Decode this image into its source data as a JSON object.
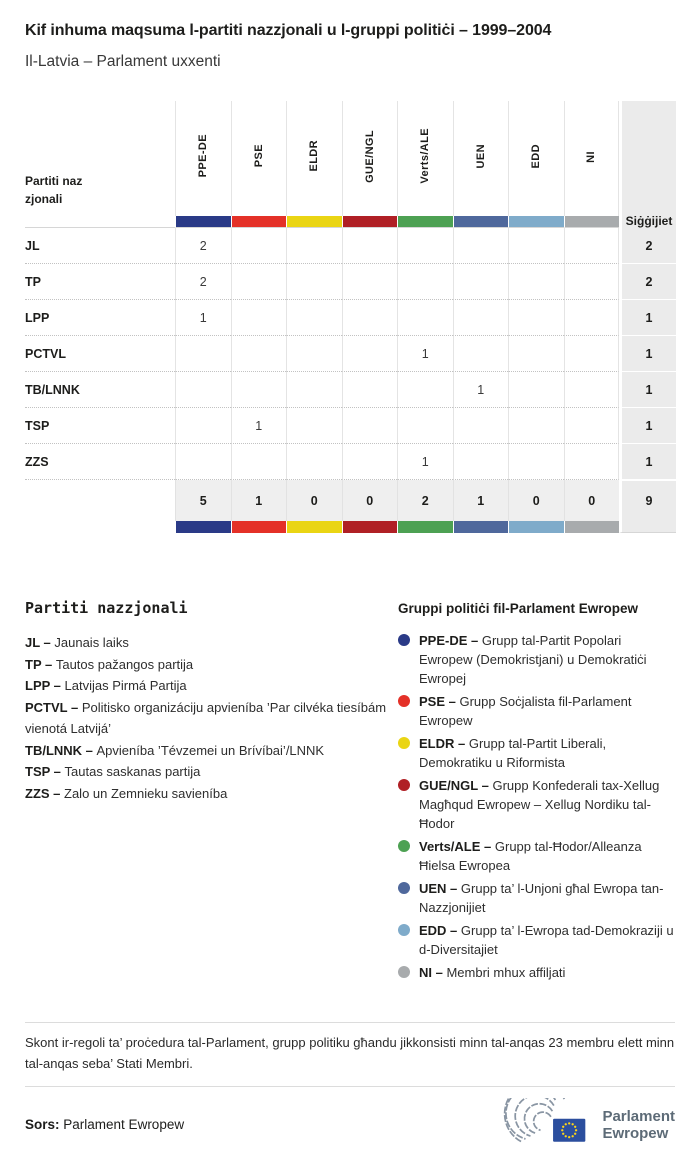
{
  "page": {
    "title": "Kif inhuma maqsuma l-partiti nazzjonali u l-gruppi politiċi – 1999–2004",
    "subtitle": "Il-Latvia – Parlament uxxenti"
  },
  "table": {
    "row_header_label": "Partiti nazzjonali",
    "seats_label": "Siġġijiet",
    "groups": [
      {
        "code": "PPE-DE",
        "color": "#2a3a87"
      },
      {
        "code": "PSE",
        "color": "#e43128"
      },
      {
        "code": "ELDR",
        "color": "#ead514"
      },
      {
        "code": "GUE/NGL",
        "color": "#b02025"
      },
      {
        "code": "Verts/ALE",
        "color": "#4da153"
      },
      {
        "code": "UEN",
        "color": "#4f689c"
      },
      {
        "code": "EDD",
        "color": "#7fabca"
      },
      {
        "code": "NI",
        "color": "#a8abad"
      }
    ],
    "rows": [
      {
        "party": "JL",
        "values": [
          "2",
          "",
          "",
          "",
          "",
          "",
          "",
          ""
        ],
        "seats": "2"
      },
      {
        "party": "TP",
        "values": [
          "2",
          "",
          "",
          "",
          "",
          "",
          "",
          ""
        ],
        "seats": "2"
      },
      {
        "party": "LPP",
        "values": [
          "1",
          "",
          "",
          "",
          "",
          "",
          "",
          ""
        ],
        "seats": "1"
      },
      {
        "party": "PCTVL",
        "values": [
          "",
          "",
          "",
          "",
          "1",
          "",
          "",
          ""
        ],
        "seats": "1"
      },
      {
        "party": "TB/LNNK",
        "values": [
          "",
          "",
          "",
          "",
          "",
          "1",
          "",
          ""
        ],
        "seats": "1"
      },
      {
        "party": "TSP",
        "values": [
          "",
          "1",
          "",
          "",
          "",
          "",
          "",
          ""
        ],
        "seats": "1"
      },
      {
        "party": "ZZS",
        "values": [
          "",
          "",
          "",
          "",
          "1",
          "",
          "",
          ""
        ],
        "seats": "1"
      }
    ],
    "totals": [
      "5",
      "1",
      "0",
      "0",
      "2",
      "1",
      "0",
      "0"
    ],
    "total_seats": "9"
  },
  "national_parties_legend": {
    "heading": "Partiti nazzjonali",
    "items": [
      {
        "abbr": "JL",
        "name": "Jaunais laiks"
      },
      {
        "abbr": "TP",
        "name": "Tautos pažangos partija"
      },
      {
        "abbr": "LPP",
        "name": "Latvijas Pirmá Partija"
      },
      {
        "abbr": "PCTVL",
        "name": "Politisko organizáciju apvieníba ’Par cilvéka tiesíbám vienotá Latvijá’"
      },
      {
        "abbr": "TB/LNNK",
        "name": "Apvieníba ’Tévzemei un Brívíbai’/LNNK"
      },
      {
        "abbr": "TSP",
        "name": "Tautas saskanas partija"
      },
      {
        "abbr": "ZZS",
        "name": "Zalo un Zemnieku savieníba"
      }
    ]
  },
  "political_groups_legend": {
    "heading": "Gruppi politiċi fil-Parlament Ewropew",
    "items": [
      {
        "abbr": "PPE-DE",
        "color": "#2a3a87",
        "desc": "Grupp tal-Partit Popolari Ewropew (Demokristjani) u Demokratiċi Ewropej"
      },
      {
        "abbr": "PSE",
        "color": "#e43128",
        "desc": "Grupp Soċjalista fil-Parlament Ewropew"
      },
      {
        "abbr": "ELDR",
        "color": "#ead514",
        "desc": "Grupp tal-Partit Liberali, Demokratiku u Riformista"
      },
      {
        "abbr": "GUE/NGL",
        "color": "#b02025",
        "desc": "Grupp Konfederali tax-Xellug Magħqud Ewropew – Xellug Nordiku tal-Ħodor"
      },
      {
        "abbr": "Verts/ALE",
        "color": "#4da153",
        "desc": "Grupp tal-Ħodor/Alleanza Ħielsa Ewropea"
      },
      {
        "abbr": "UEN",
        "color": "#4f689c",
        "desc": "Grupp ta’ l-Unjoni għal Ewropa tan-Nazzjonijiet"
      },
      {
        "abbr": "EDD",
        "color": "#7fabca",
        "desc": "Grupp ta’ l-Ewropa tad-Demokraziji u d-Diversitajiet"
      },
      {
        "abbr": "NI",
        "color": "#a8abad",
        "desc": "Membri mhux affiljati"
      }
    ]
  },
  "footer": {
    "note": "Skont ir-regoli ta’ proċedura tal-Parlament, grupp politiku għandu jikkonsisti minn tal-anqas 23 membru elett minn tal-anqas seba’ Stati Membri.",
    "source_label": "Sors:",
    "source": "Parlament Ewropew",
    "logo_line1": "Parlament",
    "logo_line2": "Ewropew"
  },
  "chart_data": {
    "type": "table",
    "title": "Kif inhuma maqsuma l-partiti nazzjonali u l-gruppi politiċi – 1999–2004",
    "subtitle": "Il-Latvia – Parlament uxxenti",
    "columns": [
      "PPE-DE",
      "PSE",
      "ELDR",
      "GUE/NGL",
      "Verts/ALE",
      "UEN",
      "EDD",
      "NI",
      "Siġġijiet"
    ],
    "rows": [
      {
        "party": "JL",
        "values": [
          2,
          null,
          null,
          null,
          null,
          null,
          null,
          null
        ],
        "seats": 2
      },
      {
        "party": "TP",
        "values": [
          2,
          null,
          null,
          null,
          null,
          null,
          null,
          null
        ],
        "seats": 2
      },
      {
        "party": "LPP",
        "values": [
          1,
          null,
          null,
          null,
          null,
          null,
          null,
          null
        ],
        "seats": 1
      },
      {
        "party": "PCTVL",
        "values": [
          null,
          null,
          null,
          null,
          1,
          null,
          null,
          null
        ],
        "seats": 1
      },
      {
        "party": "TB/LNNK",
        "values": [
          null,
          null,
          null,
          null,
          null,
          1,
          null,
          null
        ],
        "seats": 1
      },
      {
        "party": "TSP",
        "values": [
          null,
          1,
          null,
          null,
          null,
          null,
          null,
          null
        ],
        "seats": 1
      },
      {
        "party": "ZZS",
        "values": [
          null,
          null,
          null,
          null,
          1,
          null,
          null,
          null
        ],
        "seats": 1
      }
    ],
    "totals": [
      5,
      1,
      0,
      0,
      2,
      1,
      0,
      0
    ],
    "total_seats": 9,
    "group_colors": [
      "#2a3a87",
      "#e43128",
      "#ead514",
      "#b02025",
      "#4da153",
      "#4f689c",
      "#7fabca",
      "#a8abad"
    ]
  }
}
